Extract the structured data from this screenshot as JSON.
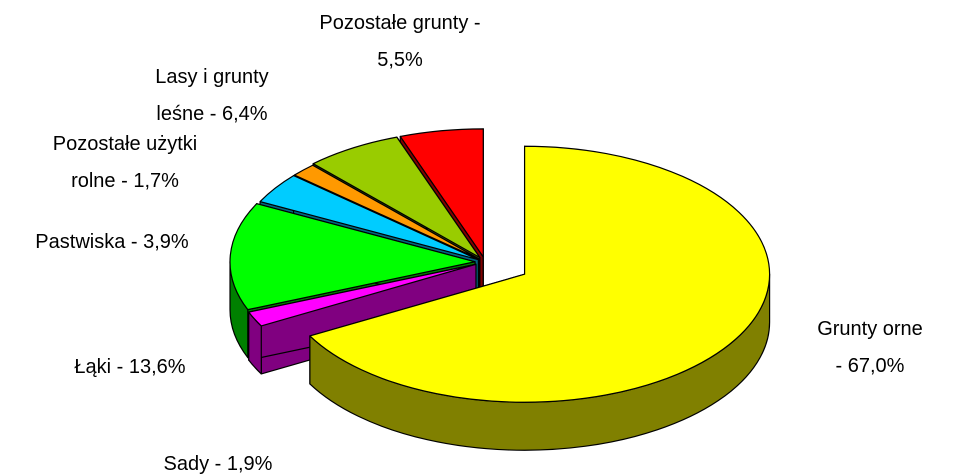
{
  "chart_data": {
    "type": "pie3d",
    "values": [
      67.0,
      1.9,
      13.6,
      3.9,
      1.7,
      6.4,
      5.5
    ],
    "value_labels": [
      "Grunty orne\n- 67,0%",
      "Sady - 1,9%",
      "Łąki - 13,6%",
      "Pastwiska - 3,9%",
      "Pozostałe użytki\nrolne - 1,7%",
      "Lasy i grunty\nleśne - 6,4%",
      "Pozostałe grunty -\n5,5%"
    ],
    "colors": [
      "#ffff00",
      "#ff00ff",
      "#00ff00",
      "#00ccff",
      "#ff9900",
      "#99cc00",
      "#ff0000"
    ],
    "side_colors": [
      "#808000",
      "#800080",
      "#008000",
      "#006680",
      "#804c00",
      "#4c6600",
      "#800000"
    ]
  }
}
